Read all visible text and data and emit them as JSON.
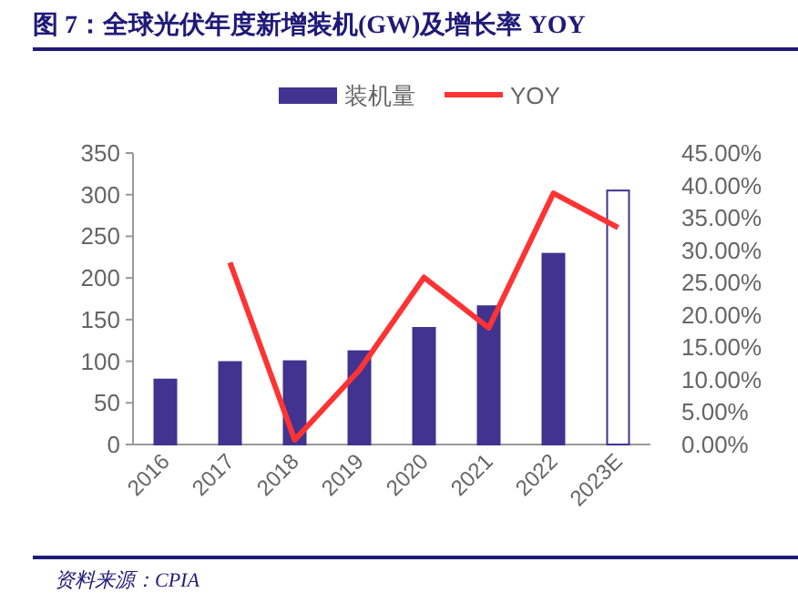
{
  "chart_data": {
    "type": "bar",
    "title": "图 7：全球光伏年度新增装机(GW)及增长率 YOY",
    "categories": [
      "2016",
      "2017",
      "2018",
      "2019",
      "2020",
      "2021",
      "2022",
      "2023E"
    ],
    "series": [
      {
        "name": "装机量",
        "color": "#41338f",
        "colors": [
          "#41338f",
          "#41338f",
          "#41338f",
          "#41338f",
          "#41338f",
          "#41338f",
          "#41338f",
          "#ffffff"
        ],
        "values": [
          78,
          99,
          100,
          112,
          140,
          166,
          229,
          305
        ]
      },
      {
        "name": "YOY",
        "type": "line",
        "axis": "y2",
        "color": "#ff3333",
        "values": [
          null,
          28.1,
          0.7,
          11.5,
          25.8,
          18.0,
          38.8,
          33.5
        ]
      }
    ],
    "ylim": [
      0,
      350
    ],
    "yticks": [
      0,
      50,
      100,
      150,
      200,
      250,
      300,
      350
    ],
    "y2lim": [
      0,
      45
    ],
    "y2ticks": [
      {
        "value": 0,
        "label": "0.00%"
      },
      {
        "value": 5,
        "label": "5.00%"
      },
      {
        "value": 10,
        "label": "10.00%"
      },
      {
        "value": 15,
        "label": "15.00%"
      },
      {
        "value": 20,
        "label": "20.00%"
      },
      {
        "value": 25,
        "label": "25.00%"
      },
      {
        "value": 30,
        "label": "30.00%"
      },
      {
        "value": 35,
        "label": "35.00%"
      },
      {
        "value": 40,
        "label": "40.00%"
      },
      {
        "value": 45,
        "label": "45.00%"
      }
    ],
    "legend": "top",
    "grid": false,
    "marker": "none",
    "annotations": [
      "资料来源：CPIA"
    ]
  }
}
